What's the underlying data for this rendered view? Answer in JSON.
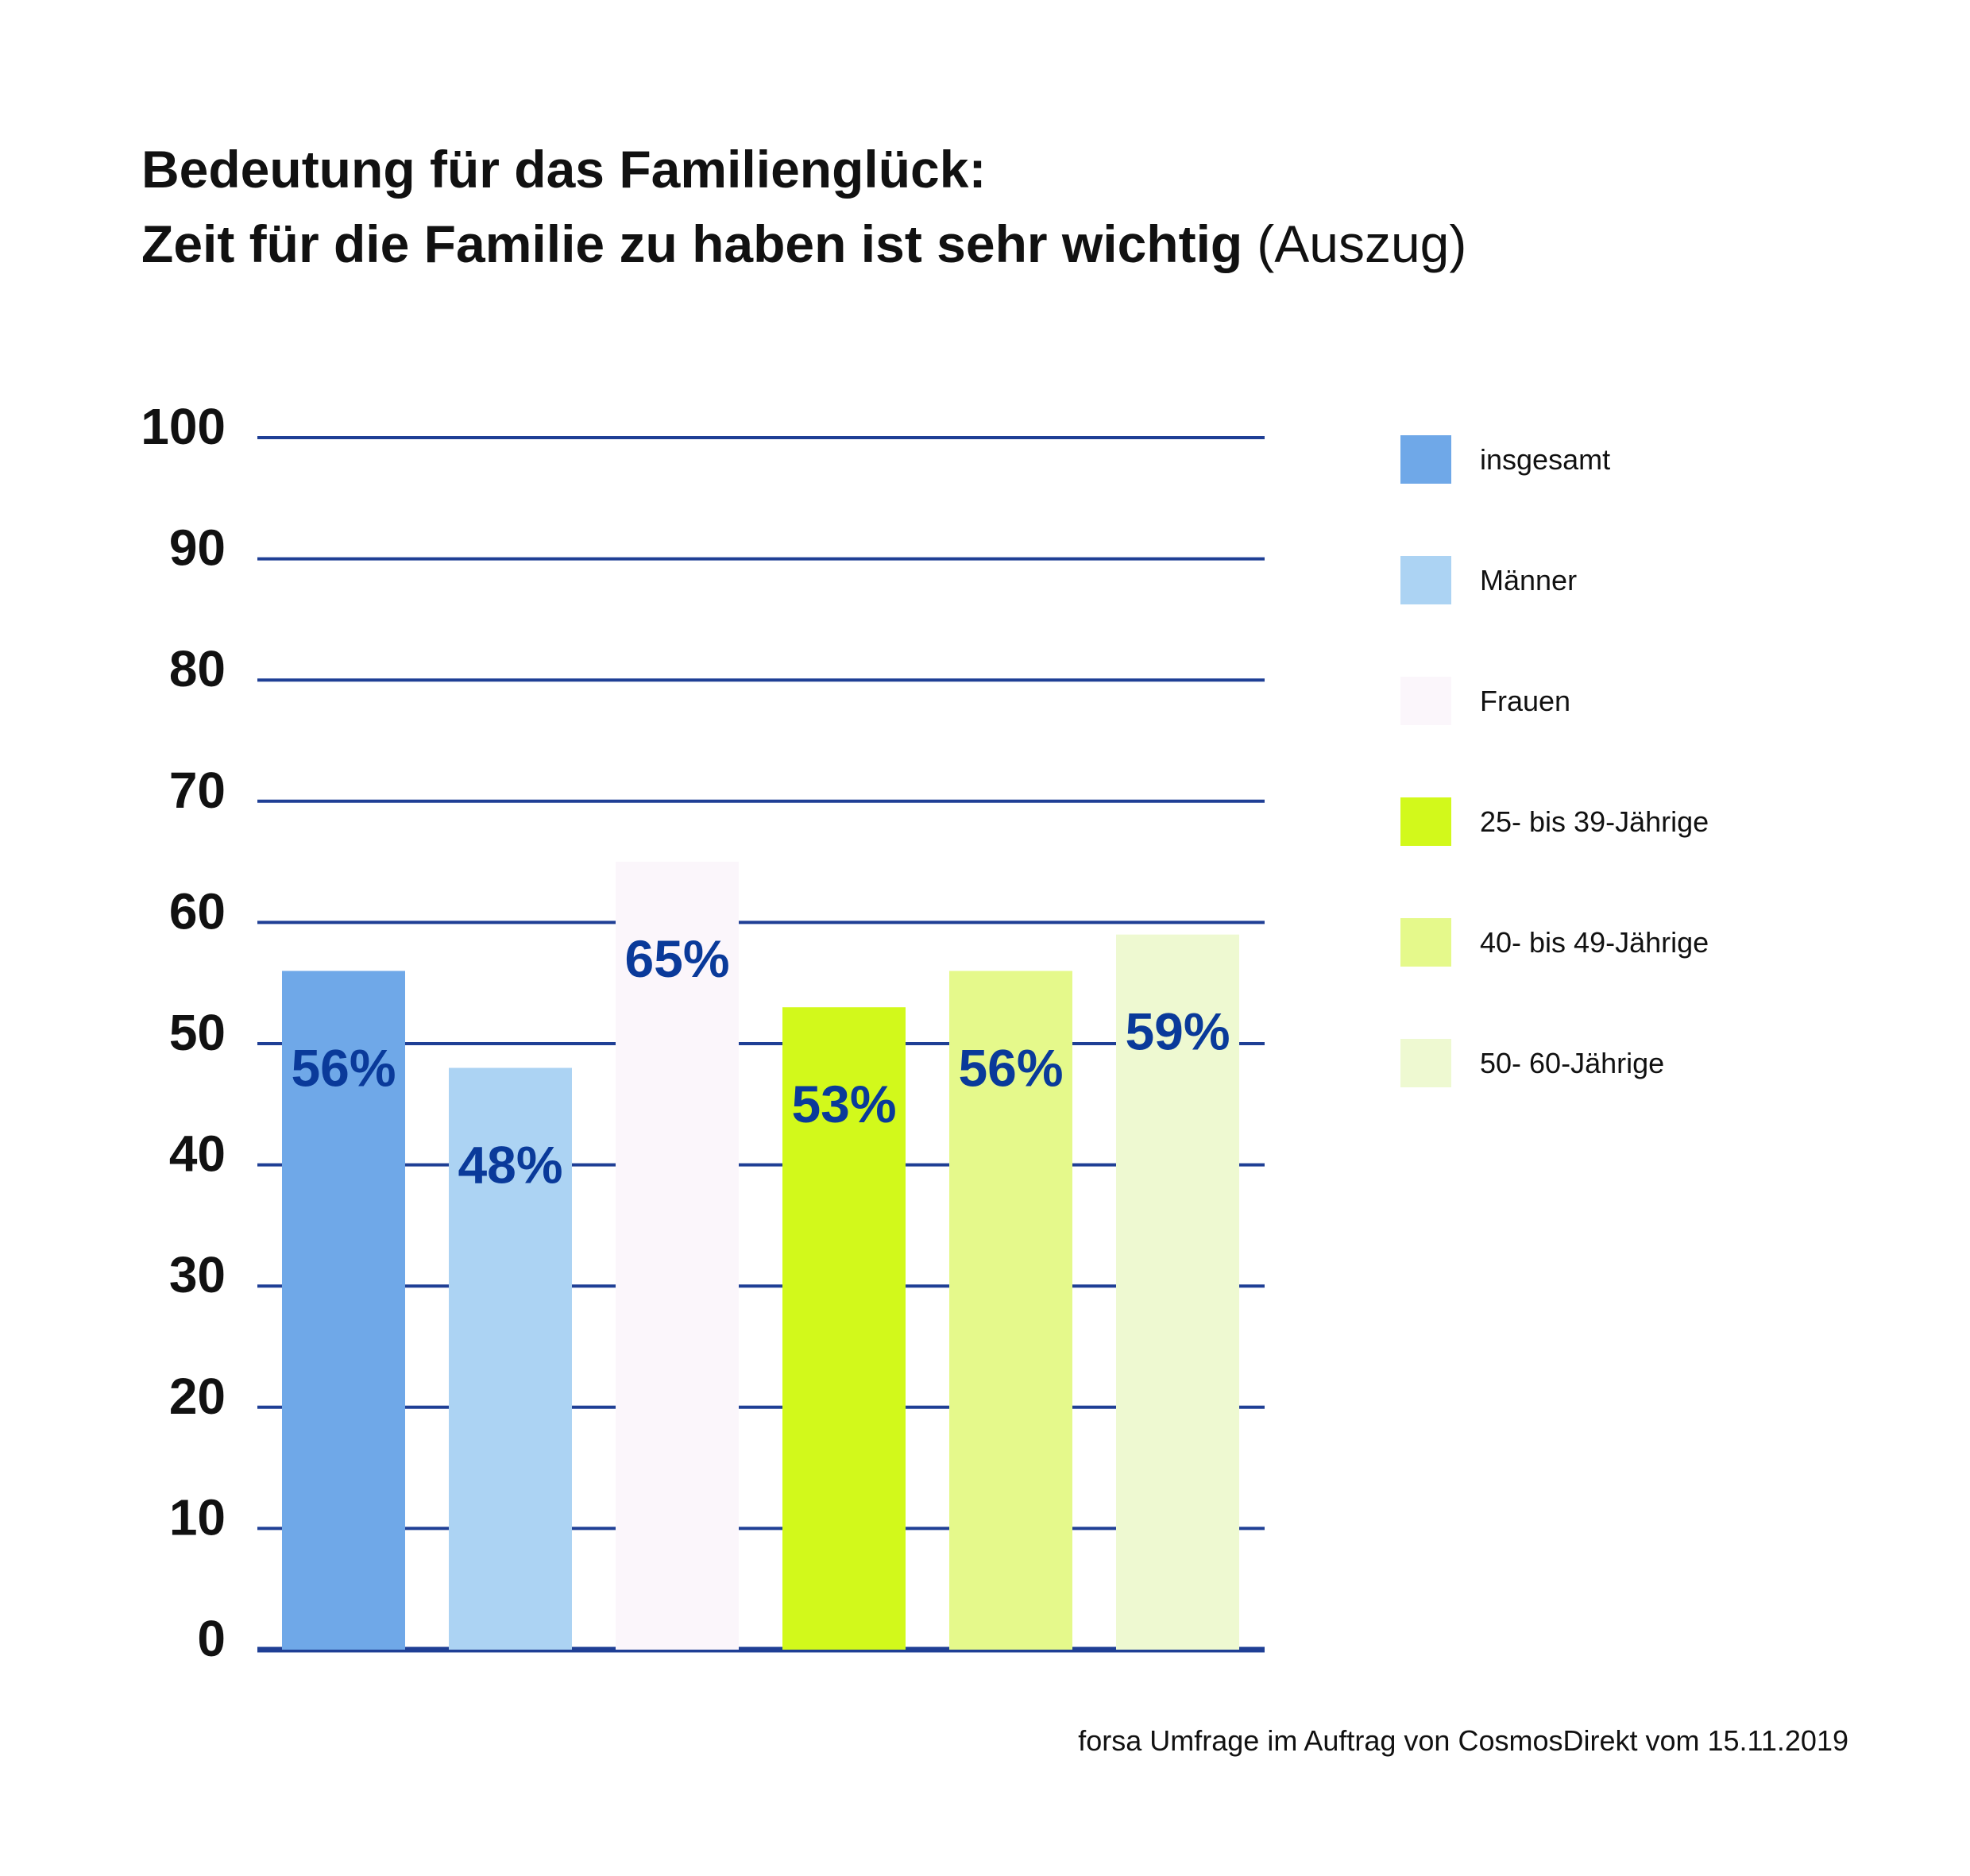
{
  "chart_data": {
    "type": "bar",
    "title": [
      "Bedeutung für das Familienglück:",
      "Zeit für die Familie zu haben ist sehr wichtig"
    ],
    "title_suffix": "(Auszug)",
    "categories": [
      null
    ],
    "series": [
      {
        "name": "insgesamt",
        "color": "#6fa8e8",
        "values": [
          56
        ],
        "value_labels": [
          "56%"
        ]
      },
      {
        "name": "Männer",
        "color": "#acd3f3",
        "values": [
          48
        ],
        "value_labels": [
          "48%"
        ]
      },
      {
        "name": "Frauen",
        "color": "#fbf6fb",
        "values": [
          65
        ],
        "value_labels": [
          "65%"
        ]
      },
      {
        "name": "25- bis 39-Jährige",
        "color": "#d2f91b",
        "values": [
          53
        ],
        "value_labels": [
          "53%"
        ]
      },
      {
        "name": "40- bis 49-Jährige",
        "color": "#e5f98b",
        "values": [
          56
        ],
        "value_labels": [
          "56%"
        ]
      },
      {
        "name": "50- 60-Jährige",
        "color": "#eef9d1",
        "values": [
          59
        ],
        "value_labels": [
          "59%"
        ]
      }
    ],
    "ylim": [
      0,
      100
    ],
    "yticks": [
      0,
      10,
      20,
      30,
      40,
      50,
      60,
      70,
      80,
      90,
      100
    ],
    "grid": true,
    "grid_color": "#1f3f95",
    "label_color": "#0a3a9a",
    "legend": "right",
    "source": "forsa Umfrage im Auftrag von CosmosDirekt vom 15.11.2019"
  }
}
